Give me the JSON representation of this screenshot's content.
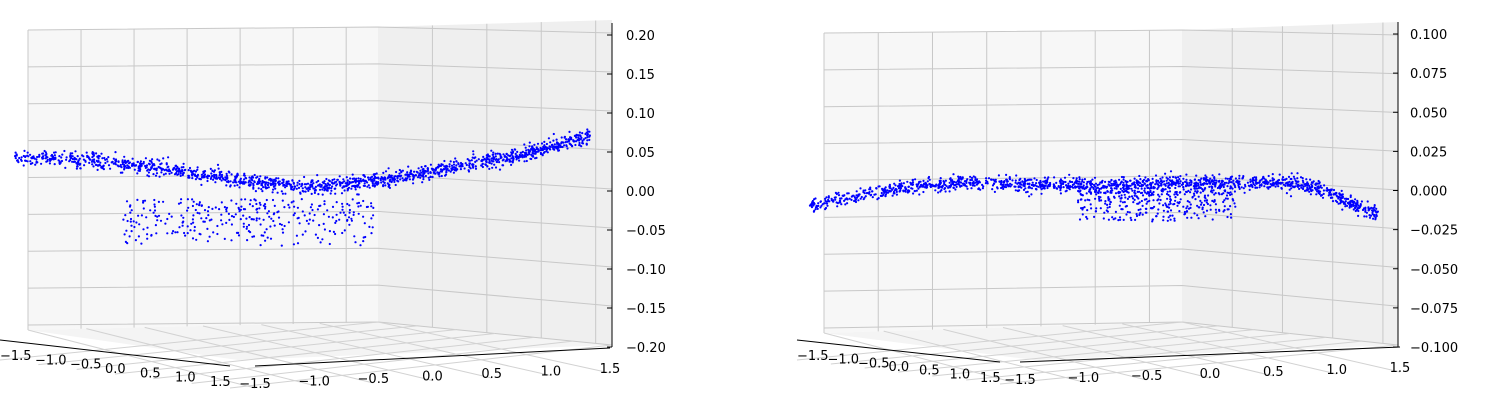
{
  "chart_data": [
    {
      "type": "scatter",
      "projection": "3d",
      "marker_color": "#0000ff",
      "xlim": [
        -1.5,
        1.5
      ],
      "ylim": [
        -1.5,
        1.5
      ],
      "zlim": [
        -0.2,
        0.2
      ],
      "x_ticks": [
        "−1.5",
        "−1.0",
        "−0.5",
        "0.0",
        "0.5",
        "1.0",
        "1.5"
      ],
      "y_ticks": [
        "−1.5",
        "−1.0",
        "−0.5",
        "0.0",
        "0.5",
        "1.0",
        "1.5"
      ],
      "z_ticks": [
        "−0.20",
        "−0.15",
        "−0.10",
        "−0.05",
        "0.00",
        "0.05",
        "0.10",
        "0.15",
        "0.20"
      ],
      "grid": true,
      "surface_profile": {
        "x": [
          -1.6,
          -1.2,
          -0.8,
          -0.4,
          0.0,
          0.4,
          0.8,
          1.2,
          1.6
        ],
        "z": [
          0.045,
          0.04,
          0.03,
          0.015,
          0.005,
          0.012,
          0.028,
          0.045,
          0.07
        ]
      },
      "dip_cluster": {
        "x": [
          -1.0,
          0.4
        ],
        "z": [
          -0.07,
          -0.01
        ]
      }
    },
    {
      "type": "scatter",
      "projection": "3d",
      "marker_color": "#0000ff",
      "xlim": [
        -1.5,
        1.5
      ],
      "ylim": [
        -1.5,
        1.5
      ],
      "zlim": [
        -0.1,
        0.1
      ],
      "x_ticks": [
        "−1.5",
        "−1.0",
        "−0.5",
        "0.0",
        "0.5",
        "1.0",
        "1.5"
      ],
      "y_ticks": [
        "−1.5",
        "−1.0",
        "−0.5",
        "0.0",
        "0.5",
        "1.0",
        "1.5"
      ],
      "z_ticks": [
        "−0.100",
        "−0.075",
        "−0.050",
        "−0.025",
        "0.000",
        "0.025",
        "0.050",
        "0.075",
        "0.100"
      ],
      "grid": true,
      "surface_profile": {
        "x": [
          -1.6,
          -1.2,
          -0.8,
          -0.4,
          0.0,
          0.4,
          0.8,
          1.2,
          1.6
        ],
        "z": [
          -0.01,
          0.0,
          0.005,
          0.004,
          0.003,
          0.004,
          0.005,
          0.004,
          -0.015
        ]
      },
      "dip_cluster": {
        "x": [
          -0.1,
          0.8
        ],
        "z": [
          -0.02,
          0.0
        ]
      }
    }
  ]
}
